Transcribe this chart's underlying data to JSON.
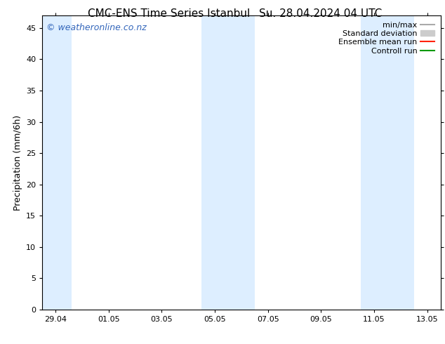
{
  "title_left": "CMC-ENS Time Series Istanbul",
  "title_right": "Su. 28.04.2024 04 UTC",
  "ylabel": "Precipitation (mm/6h)",
  "ylim": [
    0,
    47
  ],
  "yticks": [
    0,
    5,
    10,
    15,
    20,
    25,
    30,
    35,
    40,
    45
  ],
  "background_color": "#ffffff",
  "watermark": "© weatheronline.co.nz",
  "watermark_color": "#3366bb",
  "shade_color": "#ddeeff",
  "shaded_regions": [
    [
      -0.5,
      0.6
    ],
    [
      5.5,
      6.5
    ],
    [
      6.5,
      7.5
    ],
    [
      11.5,
      12.5
    ],
    [
      12.5,
      13.5
    ]
  ],
  "xtick_labels": [
    "29.04",
    "01.05",
    "03.05",
    "05.05",
    "07.05",
    "09.05",
    "11.05",
    "13.05"
  ],
  "xtick_positions": [
    0,
    2,
    4,
    6,
    8,
    10,
    12,
    14
  ],
  "xlim": [
    -0.5,
    14.5
  ],
  "legend_items": [
    {
      "label": "min/max",
      "color": "#aaaaaa",
      "lw": 1.5,
      "is_patch": false
    },
    {
      "label": "Standard deviation",
      "color": "#cccccc",
      "lw": 8,
      "is_patch": true
    },
    {
      "label": "Ensemble mean run",
      "color": "#ff2200",
      "lw": 1.5,
      "is_patch": false
    },
    {
      "label": "Controll run",
      "color": "#009900",
      "lw": 1.5,
      "is_patch": false
    }
  ],
  "title_fontsize": 11,
  "tick_fontsize": 8,
  "ylabel_fontsize": 9,
  "watermark_fontsize": 9,
  "legend_fontsize": 8
}
